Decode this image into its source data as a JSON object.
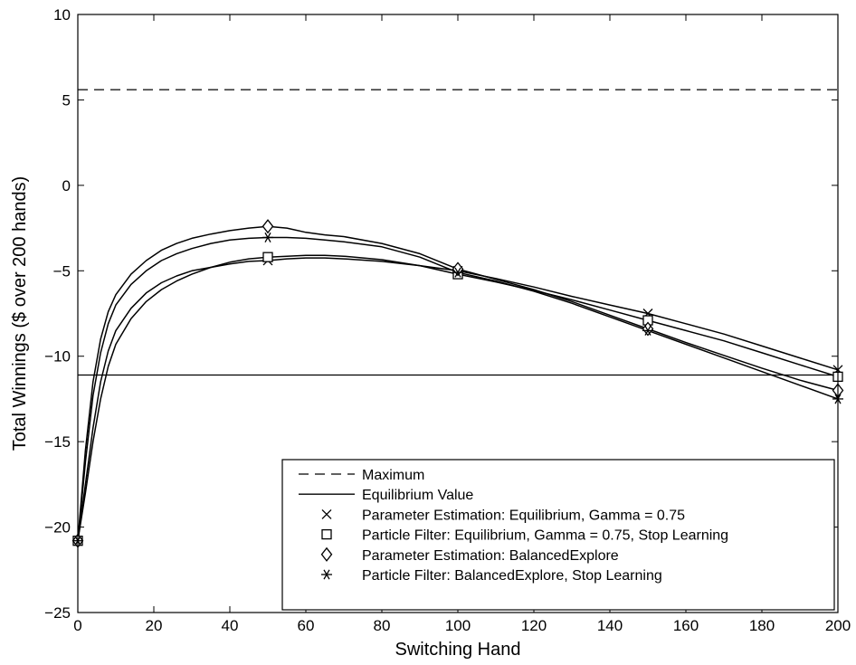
{
  "chart_data": {
    "type": "line",
    "title": "",
    "xlabel": "Switching Hand",
    "ylabel": "Total Winnings ($ over 200 hands)",
    "xlim": [
      0,
      200
    ],
    "ylim": [
      -25,
      10
    ],
    "xticks": [
      0,
      20,
      40,
      60,
      80,
      100,
      120,
      140,
      160,
      180,
      200
    ],
    "yticks": [
      -25,
      -20,
      -15,
      -10,
      -5,
      0,
      5,
      10
    ],
    "grid": false,
    "legend_position": "bottom-right",
    "reference_lines": [
      {
        "name": "Maximum",
        "y": 5.6,
        "style": "dashed"
      },
      {
        "name": "Equilibrium Value",
        "y": -11.1,
        "style": "solid"
      }
    ],
    "series": [
      {
        "name": "Parameter Estimation: Equilibrium, Gamma = 0.75",
        "marker": "x",
        "marker_x": [
          0,
          50,
          100,
          150,
          200
        ],
        "curve": [
          [
            0,
            -20.8
          ],
          [
            2,
            -17.5
          ],
          [
            4,
            -14.2
          ],
          [
            6,
            -11.5
          ],
          [
            8,
            -9.7
          ],
          [
            10,
            -8.5
          ],
          [
            14,
            -7.2
          ],
          [
            18,
            -6.3
          ],
          [
            22,
            -5.7
          ],
          [
            26,
            -5.3
          ],
          [
            30,
            -5.0
          ],
          [
            35,
            -4.8
          ],
          [
            40,
            -4.6
          ],
          [
            45,
            -4.45
          ],
          [
            50,
            -4.4
          ],
          [
            55,
            -4.3
          ],
          [
            60,
            -4.25
          ],
          [
            65,
            -4.25
          ],
          [
            70,
            -4.3
          ],
          [
            80,
            -4.45
          ],
          [
            90,
            -4.7
          ],
          [
            100,
            -5.0
          ],
          [
            110,
            -5.45
          ],
          [
            120,
            -5.95
          ],
          [
            130,
            -6.5
          ],
          [
            140,
            -7.0
          ],
          [
            150,
            -7.5
          ],
          [
            160,
            -8.1
          ],
          [
            170,
            -8.7
          ],
          [
            180,
            -9.4
          ],
          [
            190,
            -10.1
          ],
          [
            200,
            -10.8
          ]
        ]
      },
      {
        "name": "Particle Filter: Equilibrium, Gamma = 0.75, Stop Learning",
        "marker": "square",
        "marker_x": [
          0,
          50,
          100,
          150,
          200
        ],
        "curve": [
          [
            0,
            -20.8
          ],
          [
            2,
            -18.0
          ],
          [
            4,
            -15.0
          ],
          [
            6,
            -12.5
          ],
          [
            8,
            -10.6
          ],
          [
            10,
            -9.3
          ],
          [
            14,
            -7.8
          ],
          [
            18,
            -6.8
          ],
          [
            22,
            -6.1
          ],
          [
            26,
            -5.6
          ],
          [
            30,
            -5.2
          ],
          [
            35,
            -4.8
          ],
          [
            40,
            -4.5
          ],
          [
            45,
            -4.3
          ],
          [
            50,
            -4.2
          ],
          [
            55,
            -4.15
          ],
          [
            60,
            -4.1
          ],
          [
            65,
            -4.1
          ],
          [
            70,
            -4.15
          ],
          [
            80,
            -4.35
          ],
          [
            90,
            -4.7
          ],
          [
            100,
            -5.2
          ],
          [
            110,
            -5.65
          ],
          [
            120,
            -6.15
          ],
          [
            130,
            -6.7
          ],
          [
            140,
            -7.3
          ],
          [
            150,
            -7.9
          ],
          [
            160,
            -8.5
          ],
          [
            170,
            -9.1
          ],
          [
            180,
            -9.8
          ],
          [
            190,
            -10.5
          ],
          [
            200,
            -11.2
          ]
        ]
      },
      {
        "name": "Parameter Estimation: BalancedExplore",
        "marker": "diamond",
        "marker_x": [
          0,
          50,
          100,
          150,
          200
        ],
        "curve": [
          [
            0,
            -20.8
          ],
          [
            2,
            -15.5
          ],
          [
            4,
            -11.5
          ],
          [
            6,
            -9.0
          ],
          [
            8,
            -7.4
          ],
          [
            10,
            -6.4
          ],
          [
            14,
            -5.2
          ],
          [
            18,
            -4.4
          ],
          [
            22,
            -3.8
          ],
          [
            26,
            -3.4
          ],
          [
            30,
            -3.1
          ],
          [
            35,
            -2.85
          ],
          [
            40,
            -2.65
          ],
          [
            45,
            -2.5
          ],
          [
            50,
            -2.4
          ],
          [
            55,
            -2.5
          ],
          [
            60,
            -2.75
          ],
          [
            65,
            -2.9
          ],
          [
            70,
            -3.0
          ],
          [
            80,
            -3.4
          ],
          [
            90,
            -4.0
          ],
          [
            100,
            -4.9
          ],
          [
            110,
            -5.5
          ],
          [
            120,
            -6.1
          ],
          [
            130,
            -6.8
          ],
          [
            140,
            -7.6
          ],
          [
            150,
            -8.4
          ],
          [
            160,
            -9.2
          ],
          [
            170,
            -9.95
          ],
          [
            180,
            -10.7
          ],
          [
            190,
            -11.4
          ],
          [
            200,
            -12.0
          ]
        ]
      },
      {
        "name": "Particle Filter: BalancedExplore, Stop Learning",
        "marker": "asterisk",
        "marker_x": [
          0,
          50,
          100,
          150,
          200
        ],
        "curve": [
          [
            0,
            -20.8
          ],
          [
            2,
            -16.2
          ],
          [
            4,
            -12.3
          ],
          [
            6,
            -9.8
          ],
          [
            8,
            -8.1
          ],
          [
            10,
            -7.0
          ],
          [
            14,
            -5.8
          ],
          [
            18,
            -5.0
          ],
          [
            22,
            -4.4
          ],
          [
            26,
            -4.0
          ],
          [
            30,
            -3.7
          ],
          [
            35,
            -3.4
          ],
          [
            40,
            -3.2
          ],
          [
            45,
            -3.1
          ],
          [
            50,
            -3.05
          ],
          [
            55,
            -3.05
          ],
          [
            60,
            -3.1
          ],
          [
            65,
            -3.2
          ],
          [
            70,
            -3.3
          ],
          [
            80,
            -3.6
          ],
          [
            90,
            -4.2
          ],
          [
            100,
            -5.1
          ],
          [
            110,
            -5.6
          ],
          [
            120,
            -6.2
          ],
          [
            130,
            -6.9
          ],
          [
            140,
            -7.7
          ],
          [
            150,
            -8.5
          ],
          [
            160,
            -9.3
          ],
          [
            170,
            -10.1
          ],
          [
            180,
            -10.9
          ],
          [
            190,
            -11.7
          ],
          [
            200,
            -12.5
          ]
        ]
      }
    ]
  }
}
